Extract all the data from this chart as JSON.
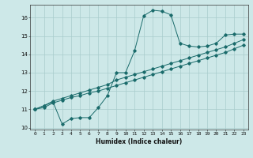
{
  "title": "",
  "xlabel": "Humidex (Indice chaleur)",
  "xlim": [
    -0.5,
    23.5
  ],
  "ylim": [
    9.9,
    16.7
  ],
  "yticks": [
    10,
    11,
    12,
    13,
    14,
    15,
    16
  ],
  "xticks": [
    0,
    1,
    2,
    3,
    4,
    5,
    6,
    7,
    8,
    9,
    10,
    11,
    12,
    13,
    14,
    15,
    16,
    17,
    18,
    19,
    20,
    21,
    22,
    23
  ],
  "bg_color": "#cde8e8",
  "line_color": "#1a6b6b",
  "grid_color": "#a8cccc",
  "line1_x": [
    0,
    1,
    2,
    3,
    4,
    5,
    6,
    7,
    8,
    9,
    10,
    11,
    12,
    13,
    14,
    15,
    16,
    17,
    18,
    19,
    20,
    21,
    22,
    23
  ],
  "line1_y": [
    11.0,
    11.2,
    11.4,
    10.2,
    10.5,
    10.55,
    10.55,
    11.1,
    11.75,
    13.0,
    13.0,
    14.2,
    16.1,
    16.4,
    16.35,
    16.15,
    14.6,
    14.45,
    14.4,
    14.45,
    14.6,
    15.05,
    15.1,
    15.1
  ],
  "line2_x": [
    0,
    1,
    2,
    3,
    4,
    5,
    6,
    7,
    8,
    9,
    10,
    11,
    12,
    13,
    14,
    15,
    16,
    17,
    18,
    19,
    20,
    21,
    22,
    23
  ],
  "line2_y": [
    11.0,
    11.1,
    11.35,
    11.5,
    11.65,
    11.75,
    11.9,
    12.0,
    12.15,
    12.3,
    12.45,
    12.6,
    12.75,
    12.9,
    13.05,
    13.2,
    13.35,
    13.5,
    13.65,
    13.8,
    13.95,
    14.1,
    14.3,
    14.5
  ],
  "line3_x": [
    0,
    1,
    2,
    3,
    4,
    5,
    6,
    7,
    8,
    9,
    10,
    11,
    12,
    13,
    14,
    15,
    16,
    17,
    18,
    19,
    20,
    21,
    22,
    23
  ],
  "line3_y": [
    11.0,
    11.2,
    11.45,
    11.6,
    11.75,
    11.9,
    12.05,
    12.2,
    12.35,
    12.6,
    12.75,
    12.9,
    13.05,
    13.2,
    13.35,
    13.5,
    13.65,
    13.8,
    13.95,
    14.1,
    14.25,
    14.4,
    14.6,
    14.8
  ]
}
